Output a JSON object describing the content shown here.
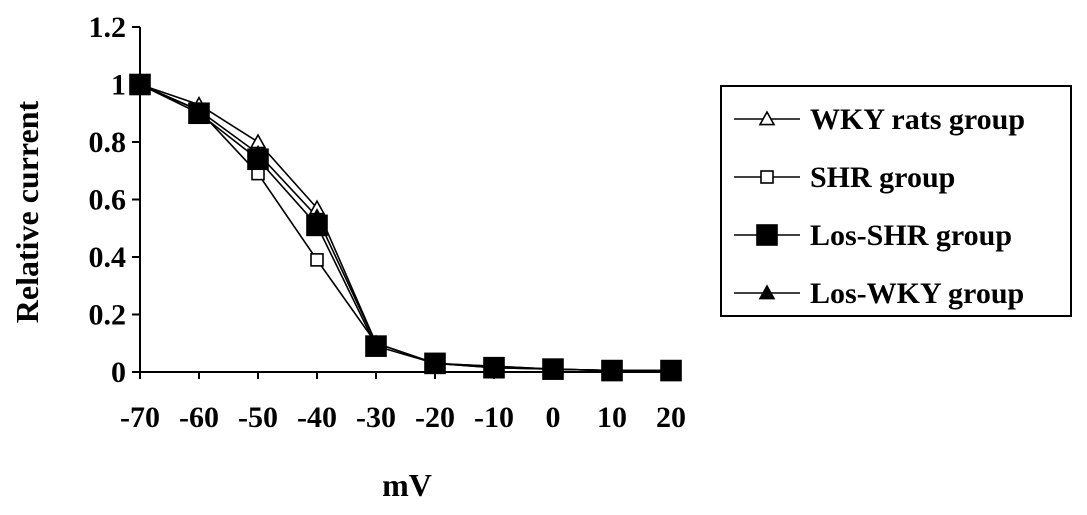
{
  "chart_data": {
    "type": "line",
    "title": "",
    "xlabel": "mV",
    "ylabel": "Relative current",
    "x": [
      -70,
      -60,
      -50,
      -40,
      -30,
      -20,
      -10,
      0,
      10,
      20
    ],
    "x_tick_labels": [
      "-70",
      "-60",
      "-50",
      "-40",
      "-30",
      "-20",
      "-10",
      "0",
      "10",
      "20"
    ],
    "ylim": [
      0,
      1.2
    ],
    "y_ticks": [
      0,
      0.2,
      0.4,
      0.6,
      0.8,
      1,
      1.2
    ],
    "y_tick_labels": [
      "0",
      "0.2",
      "0.4",
      "0.6",
      "0.8",
      "1",
      "1.2"
    ],
    "grid": false,
    "legend_position": "right",
    "series": [
      {
        "name": "WKY rats group",
        "marker": "triangle-open",
        "values": [
          1,
          0.93,
          0.8,
          0.57,
          0.1,
          0.03,
          0.02,
          0.01,
          0.005,
          0.005
        ]
      },
      {
        "name": "SHR group",
        "marker": "square-open",
        "values": [
          1,
          0.91,
          0.69,
          0.39,
          0.1,
          0.03,
          0.02,
          0.01,
          0.005,
          0.005
        ]
      },
      {
        "name": "Los-SHR group",
        "marker": "square-filled",
        "values": [
          1,
          0.9,
          0.74,
          0.51,
          0.09,
          0.03,
          0.015,
          0.01,
          0.005,
          0.005
        ]
      },
      {
        "name": "Los-WKY group",
        "marker": "triangle-filled",
        "values": [
          1,
          0.91,
          0.76,
          0.54,
          0.1,
          0.03,
          0.015,
          0.01,
          0.005,
          0.005
        ]
      }
    ],
    "colors": {
      "line": "#000000",
      "background": "#ffffff"
    }
  }
}
